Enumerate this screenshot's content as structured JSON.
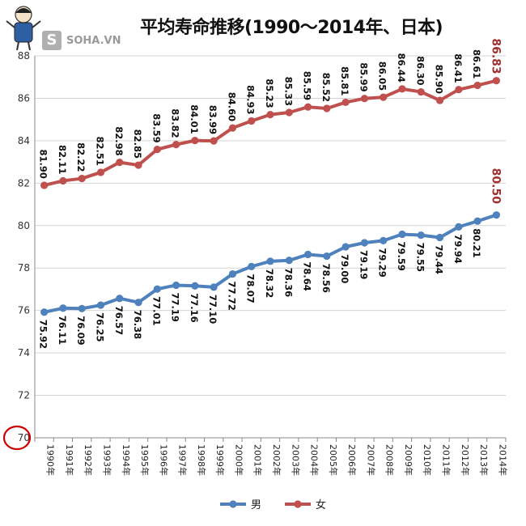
{
  "watermark": {
    "logo_letter": "S",
    "logo_text": "SOHA.VN"
  },
  "chart_data": {
    "type": "line",
    "title": "平均寿命推移(1990～2014年、日本)",
    "categories": [
      "1990年",
      "1991年",
      "1992年",
      "1993年",
      "1994年",
      "1995年",
      "1996年",
      "1997年",
      "1998年",
      "1999年",
      "2000年",
      "2001年",
      "2002年",
      "2003年",
      "2004年",
      "2005年",
      "2006年",
      "2007年",
      "2008年",
      "2009年",
      "2010年",
      "2011年",
      "2012年",
      "2013年",
      "2014年"
    ],
    "series": [
      {
        "name": "男",
        "color": "#4f81bd",
        "values": [
          75.92,
          76.11,
          76.09,
          76.25,
          76.57,
          76.38,
          77.01,
          77.19,
          77.16,
          77.1,
          77.72,
          78.07,
          78.32,
          78.36,
          78.64,
          78.56,
          79.0,
          79.19,
          79.29,
          79.59,
          79.55,
          79.44,
          79.94,
          80.21,
          80.5
        ],
        "labels": [
          "75.92",
          "76.11",
          "76.09",
          "76.25",
          "76.57",
          "76.38",
          "77.01",
          "77.19",
          "77.16",
          "77.10",
          "77.72",
          "78.07",
          "78.32",
          "78.36",
          "78.64",
          "78.56",
          "79.00",
          "79.19",
          "79.29",
          "79.59",
          "79.55",
          "79.44",
          "79.94",
          "80.21",
          "80.50"
        ]
      },
      {
        "name": "女",
        "color": "#c0504d",
        "values": [
          81.9,
          82.11,
          82.22,
          82.51,
          82.98,
          82.85,
          83.59,
          83.82,
          84.01,
          83.99,
          84.6,
          84.93,
          85.23,
          85.33,
          85.59,
          85.52,
          85.81,
          85.99,
          86.05,
          86.44,
          86.3,
          85.9,
          86.41,
          86.61,
          86.83
        ],
        "labels": [
          "81.90",
          "82.11",
          "82.22",
          "82.51",
          "82.98",
          "82.85",
          "83.59",
          "83.82",
          "84.01",
          "83.99",
          "84.60",
          "84.93",
          "85.23",
          "85.33",
          "85.59",
          "85.52",
          "85.81",
          "85.99",
          "86.05",
          "86.44",
          "86.30",
          "85.90",
          "86.41",
          "86.61",
          "86.83"
        ]
      }
    ],
    "ylim": [
      70,
      88
    ],
    "yticks": [
      "70",
      "72",
      "74",
      "76",
      "78",
      "80",
      "82",
      "84",
      "86",
      "88"
    ],
    "xlabel": "",
    "ylabel": "",
    "grid": true,
    "legend": "bottom",
    "highlight_color": "#a0302e",
    "annotation_circle_color": "#cc0000"
  }
}
